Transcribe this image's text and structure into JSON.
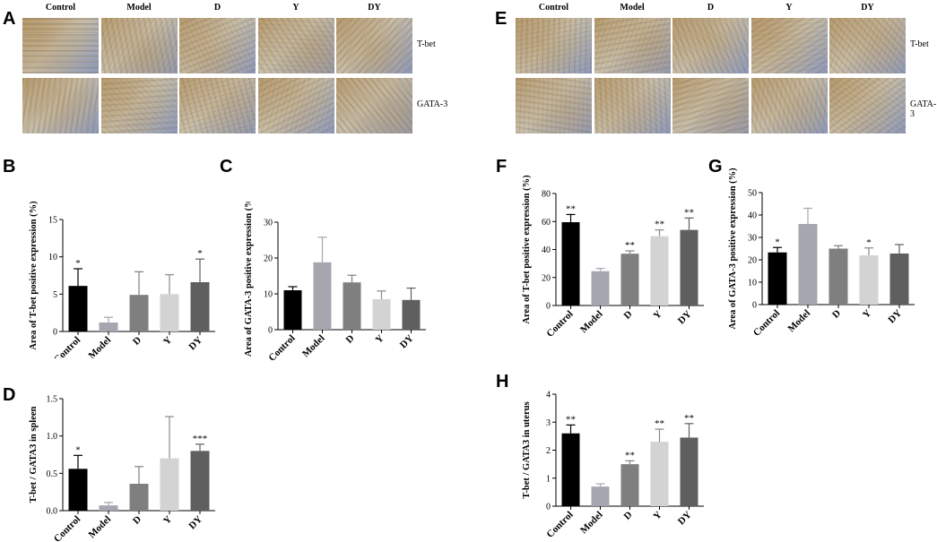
{
  "panels": {
    "A": {
      "label": "A",
      "columns": [
        "Control",
        "Model",
        "D",
        "Y",
        "DY"
      ],
      "rows": [
        "T-bet",
        "GATA-3"
      ]
    },
    "E": {
      "label": "E",
      "columns": [
        "Control",
        "Model",
        "D",
        "Y",
        "DY"
      ],
      "rows": [
        "T-bet",
        "GATA-3"
      ]
    }
  },
  "colors": {
    "Control": "#000000",
    "Model": "#a6a6b0",
    "D": "#7f7f7f",
    "Y": "#d3d3d3",
    "DY": "#5f5f5f",
    "stain_brown": "#b89a6a",
    "stain_blue": "#8e9ab8"
  },
  "chart_data": [
    {
      "id": "B",
      "label": "B",
      "type": "bar",
      "categories": [
        "Control",
        "Model",
        "D",
        "Y",
        "DY"
      ],
      "values": [
        6.1,
        1.2,
        4.9,
        5.0,
        6.6
      ],
      "errors": [
        2.3,
        0.7,
        3.1,
        2.6,
        3.1
      ],
      "sig": [
        "*",
        "",
        "",
        "",
        "*"
      ],
      "ylabel": "Area of T-bet positive expression (%)",
      "ylim": [
        0,
        15
      ],
      "yticks": [
        "0",
        "5",
        "10",
        "15"
      ]
    },
    {
      "id": "C",
      "label": "C",
      "type": "bar",
      "categories": [
        "Control",
        "Model",
        "D",
        "Y",
        "DY"
      ],
      "values": [
        11.0,
        18.8,
        13.2,
        8.5,
        8.3
      ],
      "errors": [
        1.0,
        7.0,
        2.0,
        2.3,
        3.3
      ],
      "sig": [
        "",
        "",
        "",
        "",
        ""
      ],
      "ylabel": "Area of GATA-3 positive expression (%)",
      "ylim": [
        0,
        30
      ],
      "yticks": [
        "0",
        "10",
        "20",
        "30"
      ]
    },
    {
      "id": "D",
      "label": "D",
      "type": "bar",
      "categories": [
        "Control",
        "Model",
        "D",
        "Y",
        "DY"
      ],
      "values": [
        0.56,
        0.07,
        0.36,
        0.7,
        0.8
      ],
      "errors": [
        0.18,
        0.04,
        0.23,
        0.56,
        0.09
      ],
      "sig": [
        "*",
        "",
        "",
        "",
        "***"
      ],
      "ylabel": "T-bet / GATA3 in spleen",
      "ylim": [
        0,
        1.5
      ],
      "yticks": [
        "0.0",
        "0.5",
        "1.0",
        "1.5"
      ]
    },
    {
      "id": "F",
      "label": "F",
      "type": "bar",
      "categories": [
        "Control",
        "Model",
        "D",
        "Y",
        "DY"
      ],
      "values": [
        59.5,
        24.5,
        37.0,
        49.5,
        54.0
      ],
      "errors": [
        5.5,
        2.0,
        2.0,
        4.5,
        8.5
      ],
      "sig": [
        "**",
        "",
        "**",
        "**",
        "**"
      ],
      "ylabel": "Area of T-bet positive expression (%)",
      "ylim": [
        0,
        80
      ],
      "yticks": [
        "0",
        "20",
        "40",
        "60",
        "80"
      ]
    },
    {
      "id": "G",
      "label": "G",
      "type": "bar",
      "categories": [
        "Control",
        "Model",
        "D",
        "Y",
        "DY"
      ],
      "values": [
        23.3,
        36.0,
        25.0,
        22.0,
        22.8
      ],
      "errors": [
        2.2,
        7.0,
        1.3,
        3.3,
        4.0
      ],
      "sig": [
        "*",
        "",
        "",
        "*",
        ""
      ],
      "ylabel": "Area of GATA-3 positive expression (%)",
      "ylim": [
        0,
        50
      ],
      "yticks": [
        "0",
        "10",
        "20",
        "30",
        "40",
        "50"
      ]
    },
    {
      "id": "H",
      "label": "H",
      "type": "bar",
      "categories": [
        "Control",
        "Model",
        "D",
        "Y",
        "DY"
      ],
      "values": [
        2.6,
        0.7,
        1.5,
        2.3,
        2.45
      ],
      "errors": [
        0.3,
        0.1,
        0.12,
        0.45,
        0.5
      ],
      "sig": [
        "**",
        "",
        "**",
        "**",
        "**"
      ],
      "ylabel": "T-bet / GATA3 in uterus",
      "ylim": [
        0,
        4
      ],
      "yticks": [
        "0",
        "1",
        "2",
        "3",
        "4"
      ]
    }
  ]
}
